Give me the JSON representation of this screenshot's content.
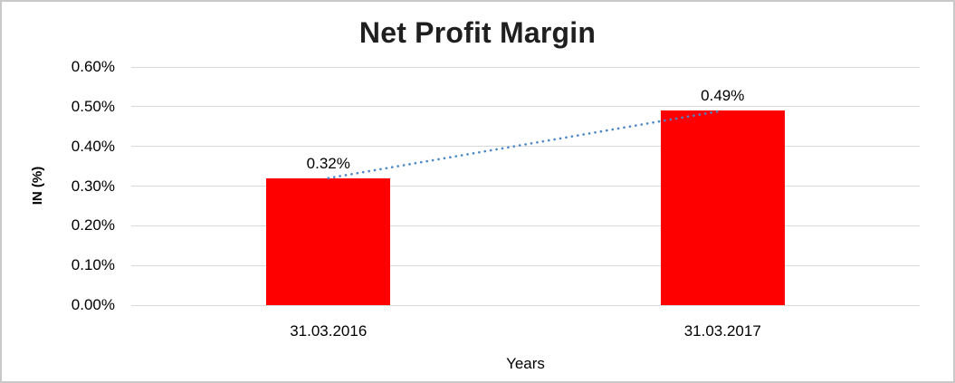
{
  "chart_data": {
    "type": "bar",
    "title": "Net Profit Margin",
    "xlabel": "Years",
    "ylabel": "IN (%)",
    "categories": [
      "31.03.2016",
      "31.03.2017"
    ],
    "series": [
      {
        "name": "Net Profit Margin",
        "values": [
          0.32,
          0.49
        ]
      }
    ],
    "data_labels": [
      "0.32%",
      "0.49%"
    ],
    "ylim": [
      0,
      0.6
    ],
    "yticks": [
      {
        "value": 0.0,
        "label": "0.00%"
      },
      {
        "value": 0.1,
        "label": "0.10%"
      },
      {
        "value": 0.2,
        "label": "0.20%"
      },
      {
        "value": 0.3,
        "label": "0.30%"
      },
      {
        "value": 0.4,
        "label": "0.40%"
      },
      {
        "value": 0.5,
        "label": "0.50%"
      },
      {
        "value": 0.6,
        "label": "0.60%"
      }
    ],
    "grid": true,
    "legend": "none",
    "trendline": {
      "style": "dotted",
      "points": [
        0.32,
        0.49
      ]
    },
    "colors": {
      "bar": "#ff0000",
      "trendline": "#4a86c8",
      "gridline": "#d9d9d9",
      "title_text": "#1f1f1f",
      "axis_text": "#000000",
      "background": "#ffffff",
      "frame_border": "#c9c9c9"
    }
  }
}
